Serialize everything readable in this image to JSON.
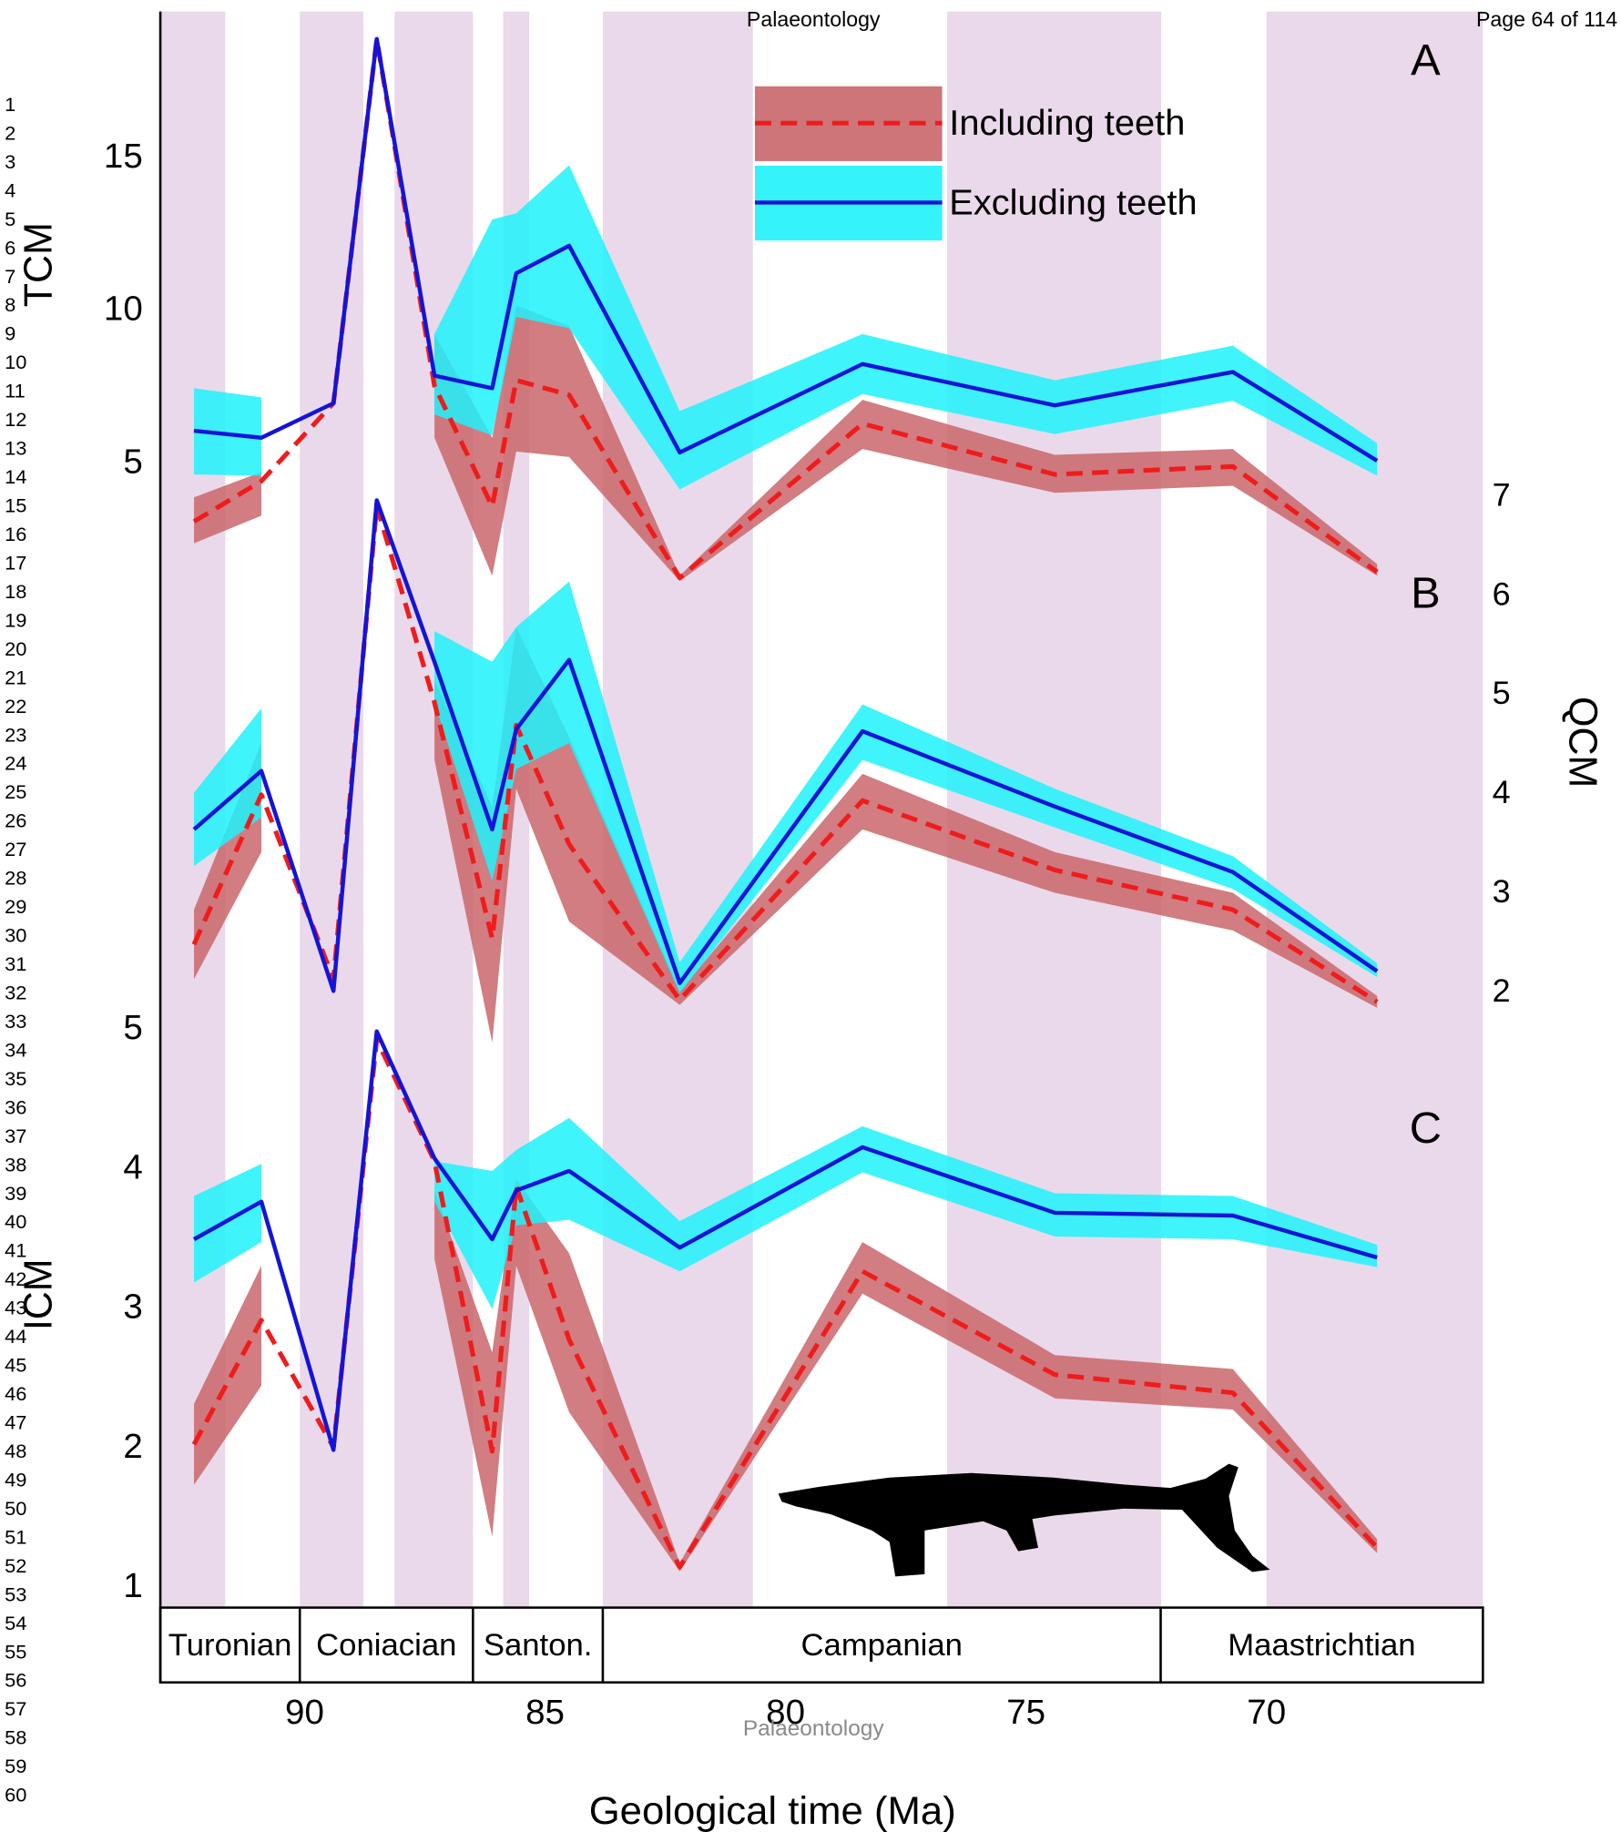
{
  "header": {
    "journal": "Palaeontology",
    "page": "Page 64 of 114"
  },
  "watermark": "Palaeontology",
  "line_numbers": [
    1,
    2,
    3,
    4,
    5,
    6,
    7,
    8,
    9,
    10,
    11,
    12,
    13,
    14,
    15,
    16,
    17,
    18,
    19,
    20,
    21,
    22,
    23,
    24,
    25,
    26,
    27,
    28,
    29,
    30,
    31,
    32,
    33,
    34,
    35,
    36,
    37,
    38,
    39,
    40,
    41,
    42,
    43,
    44,
    45,
    46,
    47,
    48,
    49,
    50,
    51,
    52,
    53,
    54,
    55,
    56,
    57,
    58,
    59,
    60
  ],
  "x_axis": {
    "label": "Geological time (Ma)",
    "xlim": [
      93.0,
      65.5
    ],
    "xticks": [
      90,
      85,
      80,
      75,
      70
    ],
    "stages": {
      "names": [
        "Turonian",
        "Coniacian",
        "Santon.",
        "Campanian",
        "Maastrichtian"
      ],
      "boundaries": [
        93.0,
        90.1,
        86.5,
        83.8,
        72.2,
        65.5
      ]
    },
    "shaded_intervals": [
      [
        93.0,
        91.65
      ],
      [
        90.1,
        88.78
      ],
      [
        88.13,
        86.5
      ],
      [
        85.87,
        85.33
      ],
      [
        83.8,
        80.68
      ],
      [
        76.64,
        72.19
      ],
      [
        70.0,
        65.5
      ]
    ],
    "shade_color": "#ead9ea"
  },
  "legend": {
    "corner": "upper center-right"
  },
  "chart_data": [
    {
      "type": "line",
      "panel": "A",
      "y_label": "TCM",
      "y_side": "left",
      "ylim": [
        -32.4,
        19.8
      ],
      "yticks": [
        5,
        10,
        15
      ],
      "x": [
        92.3,
        90.9,
        89.4,
        88.5,
        87.3,
        86.1,
        85.6,
        84.5,
        82.2,
        78.4,
        74.4,
        70.7,
        67.7
      ],
      "series": [
        {
          "name": "Including teeth",
          "color": "#ee1c1c",
          "band_color": "#c9666b",
          "dashed": true,
          "values": [
            3.12,
            4.44,
            6.99,
            18.9,
            7.56,
            3.61,
            7.74,
            7.26,
            1.28,
            6.32,
            4.66,
            4.92,
            1.47
          ],
          "upper": [
            3.91,
            4.74,
            null,
            null,
            9.25,
            5.86,
            10.19,
            9.51,
            1.35,
            7.1,
            5.3,
            5.49,
            1.73
          ],
          "lower": [
            2.41,
            3.31,
            null,
            null,
            5.86,
            1.35,
            5.41,
            5.23,
            1.17,
            5.49,
            4.06,
            4.29,
            1.35
          ]
        },
        {
          "name": "Excluding teeth",
          "color": "#1414d8",
          "band_color": "#1ff2fb",
          "dashed": false,
          "values": [
            6.09,
            5.86,
            6.99,
            18.9,
            7.89,
            7.48,
            11.24,
            12.14,
            5.38,
            8.27,
            6.92,
            8.01,
            5.11
          ],
          "upper": [
            7.48,
            7.18,
            null,
            null,
            9.25,
            13.0,
            13.2,
            14.77,
            6.73,
            9.25,
            7.74,
            8.87,
            5.68
          ],
          "lower": [
            4.66,
            4.62,
            null,
            null,
            6.62,
            5.94,
            9.81,
            9.44,
            4.17,
            7.29,
            5.98,
            7.07,
            4.62
          ]
        }
      ]
    },
    {
      "type": "line",
      "panel": "B",
      "y_label": "QCM",
      "y_side": "right",
      "ylim": [
        -4.2,
        11.9
      ],
      "yticks": [
        2,
        3,
        4,
        5,
        6,
        7
      ],
      "x": [
        92.3,
        90.9,
        89.4,
        88.5,
        87.3,
        86.1,
        85.6,
        84.5,
        82.2,
        78.4,
        74.4,
        70.7,
        67.7
      ],
      "series": [
        {
          "name": "Including teeth",
          "color": "#ee1c1c",
          "band_color": "#c9666b",
          "dashed": true,
          "values": [
            2.49,
            4.0,
            2.14,
            6.91,
            4.93,
            2.55,
            4.7,
            3.5,
            1.93,
            3.94,
            3.24,
            2.84,
            1.91
          ],
          "upper": [
            2.84,
            4.52,
            null,
            null,
            5.16,
            3.88,
            5.69,
            4.58,
            2.02,
            4.21,
            3.42,
            3.01,
            1.97
          ],
          "lower": [
            2.14,
            3.42,
            null,
            null,
            4.35,
            1.5,
            4.06,
            2.72,
            1.88,
            3.65,
            3.01,
            2.63,
            1.85
          ]
        },
        {
          "name": "Excluding teeth",
          "color": "#1414d8",
          "band_color": "#1ff2fb",
          "dashed": false,
          "values": [
            3.65,
            4.24,
            2.02,
            6.97,
            5.34,
            3.65,
            4.66,
            5.36,
            2.1,
            4.64,
            3.88,
            3.22,
            2.22
          ],
          "upper": [
            4.02,
            4.87,
            null,
            null,
            5.65,
            5.34,
            5.69,
            6.15,
            2.31,
            4.91,
            4.06,
            3.38,
            2.3
          ],
          "lower": [
            3.28,
            3.77,
            null,
            null,
            4.93,
            3.13,
            4.26,
            4.52,
            2.0,
            4.35,
            3.67,
            3.05,
            2.16
          ]
        }
      ]
    },
    {
      "type": "line",
      "panel": "C",
      "y_label": "ICM",
      "y_side": "left",
      "ylim": [
        0.86,
        12.3
      ],
      "yticks": [
        1,
        2,
        3,
        4,
        5
      ],
      "x": [
        92.3,
        90.9,
        89.4,
        88.5,
        87.3,
        86.1,
        85.6,
        84.5,
        82.2,
        78.4,
        74.4,
        70.7,
        67.7
      ],
      "series": [
        {
          "name": "Including teeth",
          "color": "#ee1c1c",
          "band_color": "#c9666b",
          "dashed": true,
          "values": [
            2.03,
            2.92,
            2.01,
            4.93,
            4.06,
            1.98,
            3.88,
            2.78,
            1.15,
            3.27,
            2.53,
            2.4,
            1.29
          ],
          "upper": [
            2.32,
            3.31,
            null,
            null,
            3.85,
            2.69,
            3.93,
            3.4,
            1.18,
            3.48,
            2.67,
            2.57,
            1.35
          ],
          "lower": [
            1.74,
            2.45,
            null,
            null,
            3.36,
            1.37,
            3.31,
            2.26,
            1.12,
            3.11,
            2.36,
            2.28,
            1.25
          ]
        },
        {
          "name": "Excluding teeth",
          "color": "#1414d8",
          "band_color": "#1ff2fb",
          "dashed": false,
          "values": [
            3.5,
            3.77,
            1.99,
            4.99,
            4.08,
            3.5,
            3.85,
            3.99,
            3.44,
            4.16,
            3.69,
            3.67,
            3.37
          ],
          "upper": [
            3.81,
            4.04,
            null,
            null,
            4.06,
            3.99,
            4.14,
            4.37,
            3.63,
            4.31,
            3.83,
            3.81,
            3.46
          ],
          "lower": [
            3.19,
            3.48,
            null,
            null,
            3.77,
            3.0,
            3.6,
            3.64,
            3.27,
            3.98,
            3.52,
            3.5,
            3.3
          ]
        }
      ]
    }
  ]
}
